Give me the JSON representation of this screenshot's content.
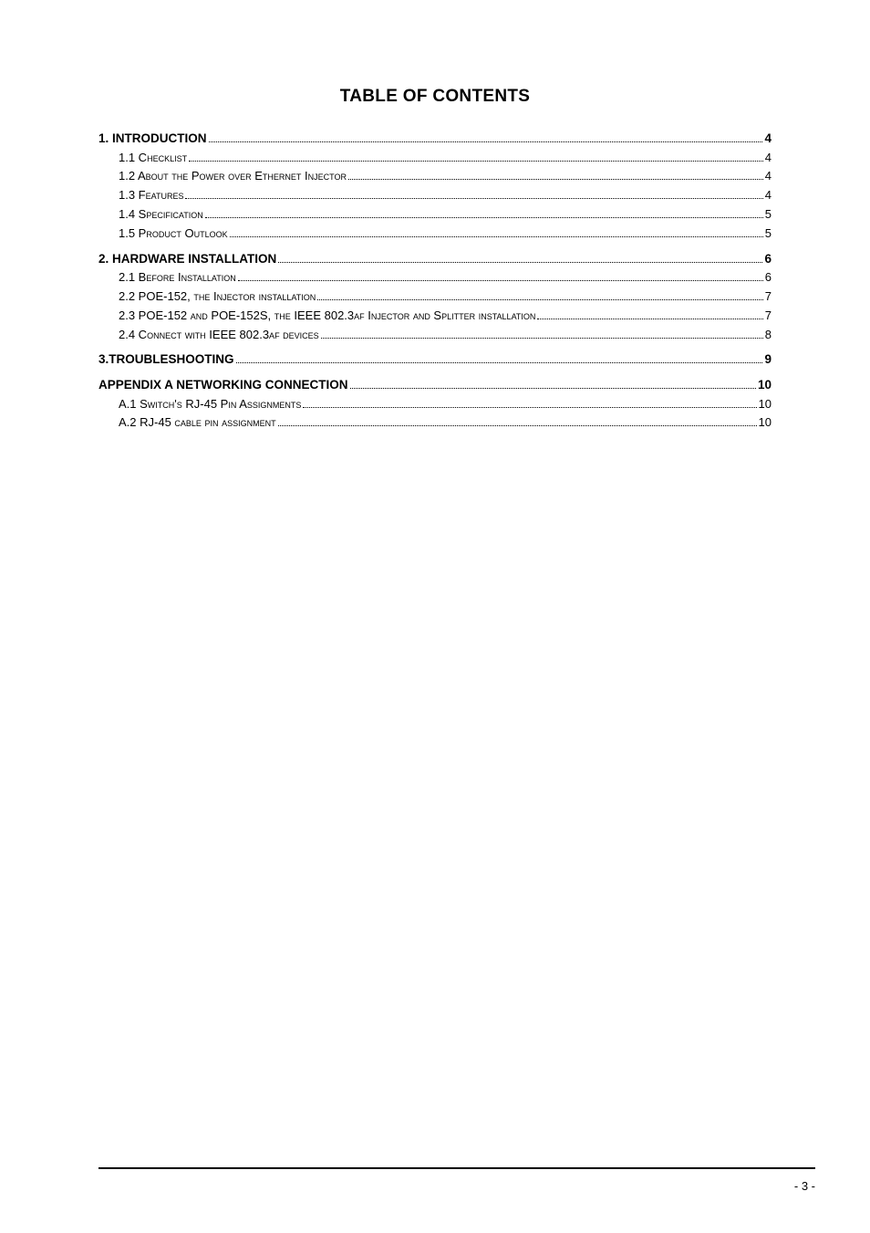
{
  "title": "TABLE OF CONTENTS",
  "footer_page": "- 3 -",
  "toc": {
    "groups": [
      {
        "heading": {
          "text": "1.  INTRODUCTION",
          "page": "4"
        },
        "items": [
          {
            "prefix": "1.1 C",
            "rest": "hecklist",
            "page": "4"
          },
          {
            "prefix": "1.2 A",
            "rest": "bout the Power over Ethernet Injector",
            "page": "4"
          },
          {
            "prefix": "1.3 F",
            "rest": "eatures",
            "page": "4"
          },
          {
            "prefix": "1.4 S",
            "rest": "pecification",
            "page": "5"
          },
          {
            "prefix": "1.5 P",
            "rest": "roduct Outlook",
            "page": "5"
          }
        ]
      },
      {
        "heading": {
          "text": "2.  HARDWARE INSTALLATION",
          "page": "6"
        },
        "items": [
          {
            "prefix": "2.1 B",
            "rest": "efore Installation",
            "page": "6"
          },
          {
            "prefix": "2.2 POE-152, ",
            "rest": "the Injector installation",
            "page": "7"
          },
          {
            "prefix": "2.3 POE-152 ",
            "rest": "and POE-152S, the IEEE 802.3af Injector and Splitter installation",
            "page": "7"
          },
          {
            "prefix": "2.4 C",
            "rest": "onnect with IEEE 802.3af devices",
            "page": "8"
          }
        ]
      },
      {
        "heading": {
          "text": "3.TROUBLESHOOTING",
          "page": "9"
        },
        "items": []
      },
      {
        "heading": {
          "text": "APPENDIX A NETWORKING CONNECTION",
          "page": "10"
        },
        "items": [
          {
            "prefix": "A.1 S",
            "rest": "witch's RJ-45 Pin Assignments",
            "page": "10"
          },
          {
            "prefix": "A.2 RJ-45 ",
            "rest": "cable pin assignment",
            "page": "10"
          }
        ]
      }
    ]
  }
}
